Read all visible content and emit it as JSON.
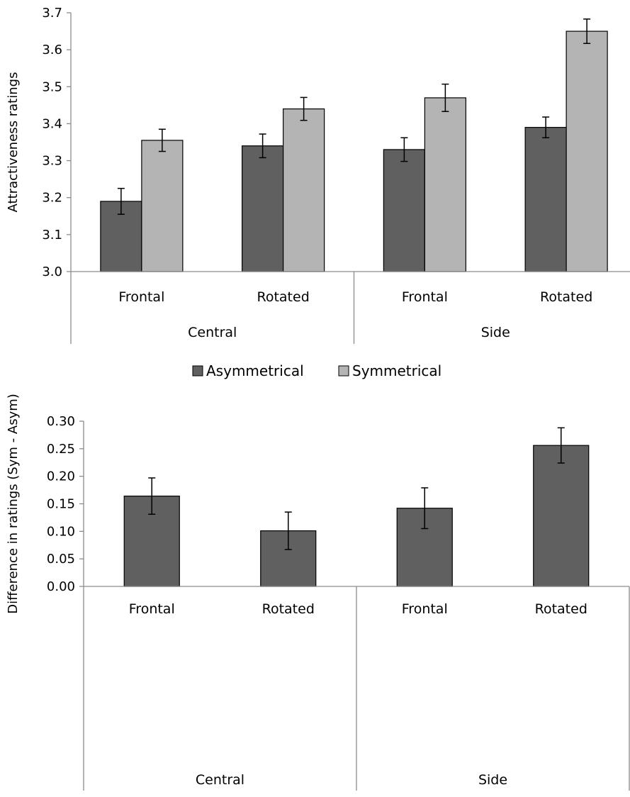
{
  "colors": {
    "asymmetrical": "#606060",
    "symmetrical": "#b4b4b4",
    "difference": "#606060",
    "axis": "#8c8c8c",
    "bar_stroke": "#000000",
    "error_bar": "#000000"
  },
  "chart_data": [
    {
      "type": "bar",
      "title": "",
      "ylabel": "Attractiveness ratings",
      "xlabel": "",
      "ylim": [
        3.0,
        3.7
      ],
      "yticks": [
        "3.0",
        "3.1",
        "3.2",
        "3.3",
        "3.4",
        "3.5",
        "3.6",
        "3.7"
      ],
      "grid": false,
      "categories": [
        "Frontal",
        "Rotated",
        "Frontal",
        "Rotated"
      ],
      "groups": [
        "Central",
        "Side"
      ],
      "legend_position": "bottom",
      "series": [
        {
          "name": "Asymmetrical",
          "color_key": "asymmetrical",
          "values": [
            3.19,
            3.34,
            3.33,
            3.39
          ],
          "errors": [
            0.035,
            0.032,
            0.032,
            0.028
          ]
        },
        {
          "name": "Symmetrical",
          "color_key": "symmetrical",
          "values": [
            3.355,
            3.44,
            3.47,
            3.65
          ],
          "errors": [
            0.03,
            0.031,
            0.037,
            0.033
          ]
        }
      ]
    },
    {
      "type": "bar",
      "title": "",
      "ylabel": "Difference in ratings (Sym - Asym)",
      "xlabel": "",
      "ylim": [
        0.0,
        0.3
      ],
      "yticks": [
        "0.00",
        "0.05",
        "0.10",
        "0.15",
        "0.20",
        "0.25",
        "0.30"
      ],
      "grid": false,
      "categories": [
        "Frontal",
        "Rotated",
        "Frontal",
        "Rotated"
      ],
      "groups": [
        "Central",
        "Side"
      ],
      "series": [
        {
          "color_key": "difference",
          "values": [
            0.164,
            0.101,
            0.142,
            0.256
          ],
          "errors": [
            0.033,
            0.034,
            0.037,
            0.032
          ]
        }
      ]
    }
  ]
}
